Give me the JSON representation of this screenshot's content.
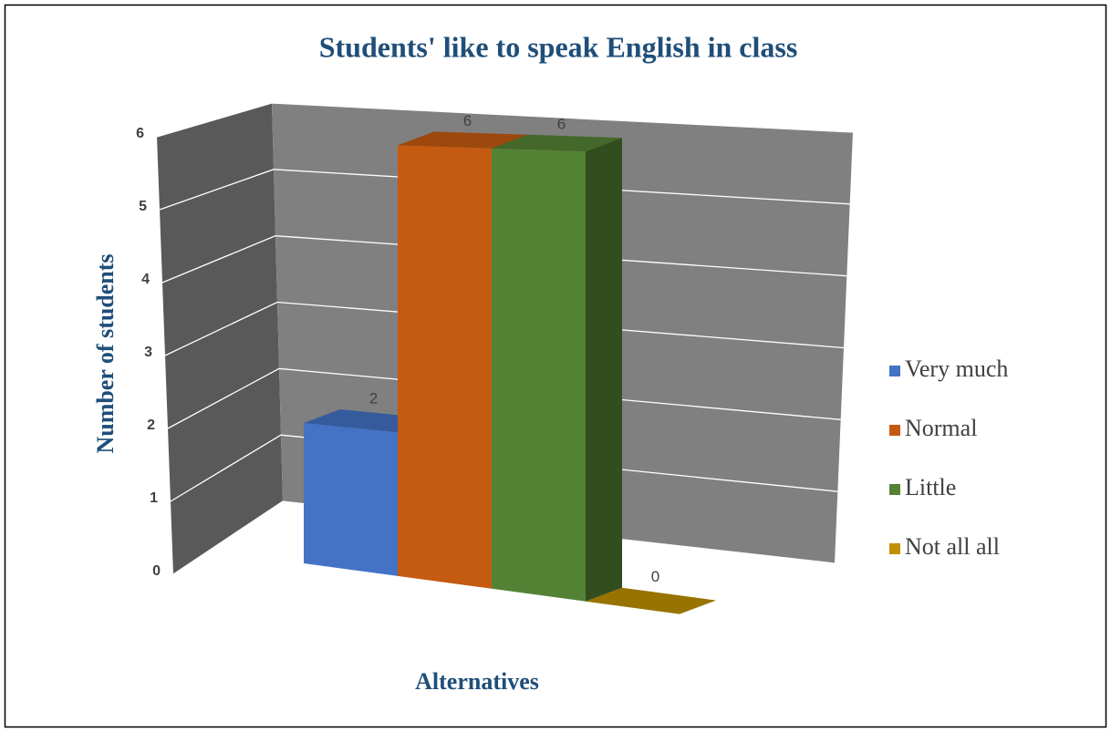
{
  "chart_data": {
    "type": "bar",
    "title": "Students' like to speak English in class",
    "y_label": "Number of students",
    "x_label": "Alternatives",
    "categories": [
      null
    ],
    "series": [
      {
        "name": "Very much",
        "color": "#4472c4",
        "values": [
          2
        ]
      },
      {
        "name": "Normal",
        "color": "#c55a11",
        "values": [
          6
        ]
      },
      {
        "name": "Little",
        "color": "#548235",
        "values": [
          6
        ]
      },
      {
        "name": "Not all all",
        "color": "#bf9000",
        "values": [
          0
        ]
      }
    ],
    "ylim": [
      0,
      6
    ],
    "yticks": [
      0,
      1,
      2,
      3,
      4,
      5,
      6
    ],
    "grid": true,
    "legend": "right"
  }
}
